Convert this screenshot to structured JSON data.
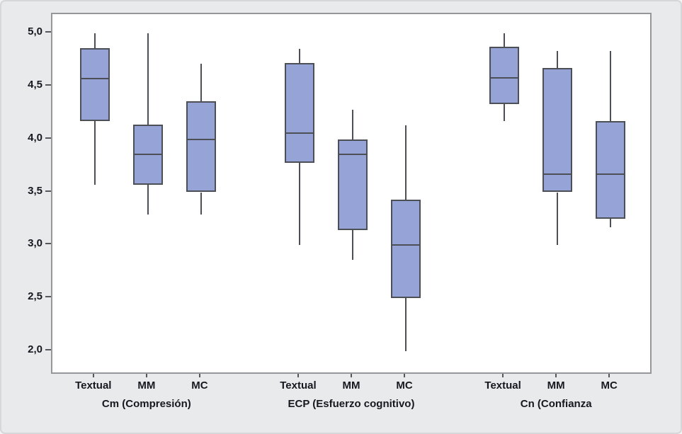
{
  "chart_data": {
    "type": "boxplot",
    "title": "",
    "xlabel": "",
    "ylabel": "",
    "ylim": [
      1.8,
      5.2
    ],
    "grid": false,
    "legend": null,
    "orientation": "vertical",
    "y_axis": {
      "decimal_separator": ",",
      "ticks": [
        {
          "value": 5.0,
          "label": "5,0"
        },
        {
          "value": 4.5,
          "label": "4,5"
        },
        {
          "value": 4.0,
          "label": "4,0"
        },
        {
          "value": 3.5,
          "label": "3,5"
        },
        {
          "value": 3.0,
          "label": "3,0"
        },
        {
          "value": 2.5,
          "label": "2,5"
        },
        {
          "value": 2.0,
          "label": "2,0"
        }
      ]
    },
    "groups": [
      {
        "label": "Cm (Compresión)",
        "boxes": [
          {
            "label": "Textual",
            "whisker_low": 3.57,
            "q1": 4.17,
            "median": 4.57,
            "q3": 4.86,
            "whisker_high": 5.0
          },
          {
            "label": "MM",
            "whisker_low": 3.29,
            "q1": 3.57,
            "median": 3.86,
            "q3": 4.14,
            "whisker_high": 5.0
          },
          {
            "label": "MC",
            "whisker_low": 3.29,
            "q1": 3.5,
            "median": 4.0,
            "q3": 4.36,
            "whisker_high": 4.71
          }
        ]
      },
      {
        "label": "ECP (Esfuerzo cognitivo)",
        "boxes": [
          {
            "label": "Textual",
            "whisker_low": 3.0,
            "q1": 3.78,
            "median": 4.06,
            "q3": 4.72,
            "whisker_high": 4.85
          },
          {
            "label": "MM",
            "whisker_low": 2.86,
            "q1": 3.14,
            "median": 3.86,
            "q3": 4.0,
            "whisker_high": 4.28
          },
          {
            "label": "MC",
            "whisker_low": 2.0,
            "q1": 2.5,
            "median": 3.0,
            "q3": 3.43,
            "whisker_high": 4.13
          }
        ]
      },
      {
        "label": "Cn (Confianza",
        "boxes": [
          {
            "label": "Textual",
            "whisker_low": 4.17,
            "q1": 4.33,
            "median": 4.58,
            "q3": 4.87,
            "whisker_high": 5.0
          },
          {
            "label": "MM",
            "whisker_low": 3.0,
            "q1": 3.5,
            "median": 3.67,
            "q3": 4.67,
            "whisker_high": 4.83
          },
          {
            "label": "MC",
            "whisker_low": 3.17,
            "q1": 3.25,
            "median": 3.67,
            "q3": 4.17,
            "whisker_high": 4.83
          }
        ]
      }
    ],
    "colors": {
      "box_fill": "#95a3d6",
      "box_border": "#4d4f56",
      "whisker": "#4d4f56",
      "plot_background": "#ffffff",
      "plot_border": "#95979b",
      "canvas_background": "#e9eaec",
      "tick_color": "#55575c",
      "tick_text": "#17171f"
    }
  }
}
